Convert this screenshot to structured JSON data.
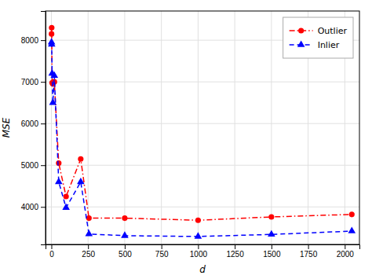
{
  "chart_data": {
    "type": "line",
    "x": [
      1,
      2,
      5,
      10,
      20,
      50,
      100,
      200,
      256,
      500,
      1000,
      1500,
      2048
    ],
    "xlabel": "d",
    "ylabel": "MSE",
    "xlim": [
      -40,
      2100
    ],
    "ylim": [
      3100,
      8700
    ],
    "xticks": [
      0,
      250,
      500,
      750,
      1000,
      1250,
      1500,
      1750,
      2000
    ],
    "yticks": [
      4000,
      5000,
      6000,
      7000,
      8000
    ],
    "grid": true,
    "legend": "upper right",
    "series": [
      {
        "name": "Outlier",
        "color": "#ff0000",
        "marker": "circle",
        "line_style": "dash-dot",
        "values": [
          8150,
          8300,
          6980,
          6950,
          7000,
          5050,
          4250,
          5150,
          3730,
          3730,
          3680,
          3760,
          3820
        ]
      },
      {
        "name": "Inlier",
        "color": "#0000ff",
        "marker": "triangle",
        "line_style": "dashed",
        "values": [
          7950,
          7900,
          7200,
          6500,
          7150,
          4600,
          3980,
          4600,
          3350,
          3310,
          3290,
          3340,
          3420
        ]
      }
    ]
  }
}
